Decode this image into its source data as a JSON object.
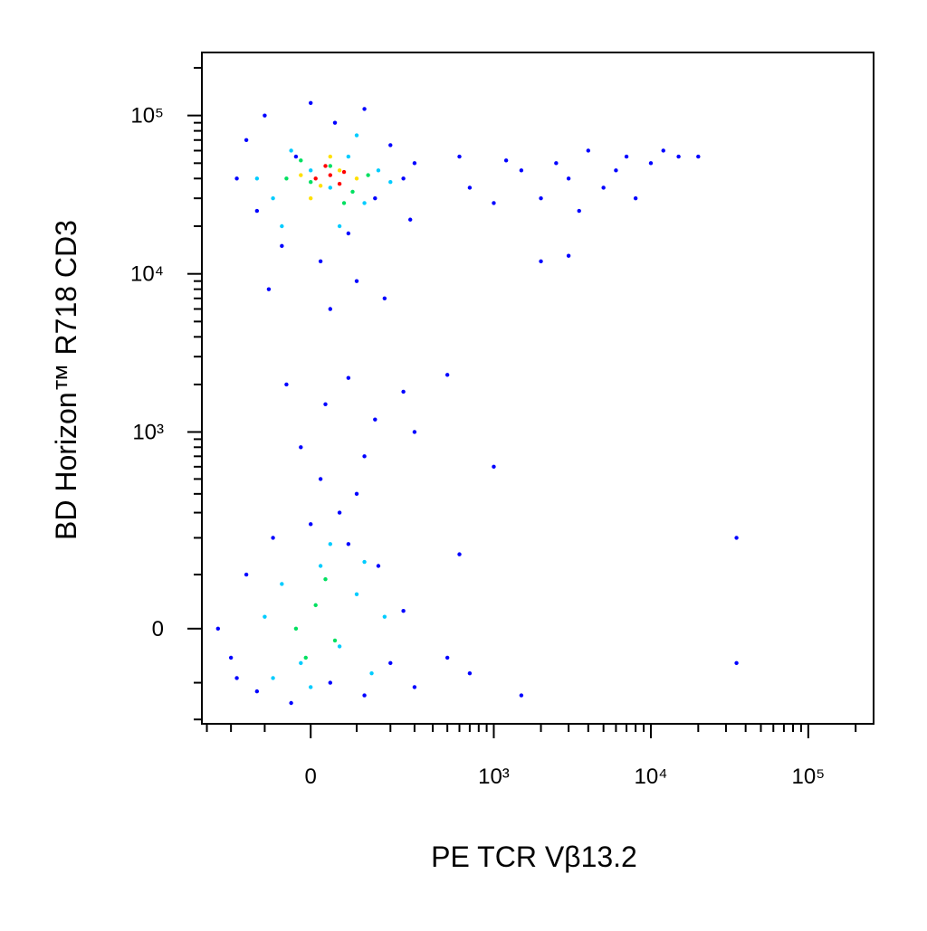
{
  "chart_data": {
    "type": "scatter",
    "xlabel": "PE  TCR Vβ13.2",
    "ylabel": "BD Horizon™ R718 CD3",
    "xscale": "biexponential",
    "yscale": "biexponential",
    "xlim": [
      -325,
      260000
    ],
    "ylim": [
      -215,
      250000
    ],
    "xticks": [
      0,
      {
        "value": 1000,
        "label": "10³"
      },
      {
        "value": 10000,
        "label": "10⁴"
      },
      {
        "value": 100000,
        "label": "10⁵"
      }
    ],
    "yticks": [
      0,
      {
        "value": 1000,
        "label": "10³"
      },
      {
        "value": 10000,
        "label": "10⁴"
      },
      {
        "value": 100000,
        "label": "10⁵"
      }
    ],
    "xminorticks": [
      -300,
      -200,
      -100,
      100,
      200,
      300,
      400,
      500,
      600,
      700,
      800,
      900,
      2000,
      3000,
      4000,
      5000,
      6000,
      7000,
      8000,
      9000,
      20000,
      30000,
      40000,
      50000,
      60000,
      70000,
      80000,
      90000,
      200000
    ],
    "yminorticks": [
      -200,
      -100,
      100,
      200,
      300,
      400,
      500,
      600,
      700,
      800,
      900,
      2000,
      3000,
      4000,
      5000,
      6000,
      7000,
      8000,
      9000,
      20000,
      30000,
      40000,
      50000,
      60000,
      70000,
      80000,
      90000,
      200000
    ],
    "series": [
      {
        "color": "#0000ff",
        "x": [
          -180,
          -150,
          -120,
          -100,
          -60,
          -30,
          0,
          20,
          50,
          80,
          120,
          150,
          200,
          250,
          280,
          300,
          -90,
          40,
          100,
          180,
          -50,
          30,
          80,
          150,
          250,
          -20,
          120,
          300,
          500,
          1000,
          700,
          1000,
          1500,
          2000,
          2500,
          3000,
          3500,
          4000,
          5000,
          6000,
          7000,
          8000,
          10000,
          12000,
          15000,
          20000,
          2000,
          3000,
          1200,
          600,
          -250,
          -200,
          -150,
          -120,
          -80,
          -40,
          0,
          40,
          80,
          120,
          160,
          200,
          250,
          300,
          -180,
          60,
          100,
          20,
          500,
          700,
          1500,
          35000,
          35000,
          600
        ],
        "y": [
          40000,
          70000,
          25000,
          100000,
          15000,
          55000,
          120000,
          12000,
          90000,
          18000,
          110000,
          30000,
          65000,
          40000,
          22000,
          50000,
          8000,
          6000,
          9000,
          7000,
          2000,
          1500,
          2200,
          1200,
          1800,
          800,
          700,
          1000,
          2300,
          600,
          35000,
          28000,
          45000,
          30000,
          50000,
          40000,
          25000,
          60000,
          35000,
          45000,
          55000,
          30000,
          50000,
          60000,
          55000,
          55000,
          12000,
          13000,
          52000,
          55000,
          0,
          -50,
          100,
          -120,
          200,
          -150,
          250,
          -100,
          180,
          -130,
          120,
          -60,
          30,
          -110,
          -90,
          300,
          400,
          500,
          -50,
          -80,
          -130,
          200,
          -60,
          150
        ]
      },
      {
        "color": "#00ccff",
        "x": [
          -120,
          -80,
          -40,
          0,
          40,
          80,
          120,
          160,
          200,
          -60,
          60,
          100,
          -100,
          -60,
          -20,
          20,
          60,
          100,
          140,
          -80,
          40,
          120,
          0,
          180
        ],
        "y": [
          40000,
          30000,
          60000,
          45000,
          35000,
          55000,
          28000,
          45000,
          38000,
          20000,
          20000,
          75000,
          20,
          80,
          -60,
          120,
          -30,
          60,
          -80,
          -90,
          180,
          130,
          -110,
          20
        ]
      },
      {
        "color": "#00e060",
        "x": [
          -50,
          0,
          40,
          90,
          130,
          -20,
          70,
          -30,
          10,
          50,
          -10,
          30
        ],
        "y": [
          40000,
          38000,
          48000,
          33000,
          42000,
          52000,
          28000,
          0,
          40,
          -20,
          -50,
          90
        ]
      },
      {
        "color": "#ffe000",
        "x": [
          -20,
          20,
          60,
          100,
          40,
          0
        ],
        "y": [
          42000,
          36000,
          45000,
          40000,
          55000,
          30000
        ]
      },
      {
        "color": "#ff0000",
        "x": [
          10,
          40,
          60,
          30,
          70
        ],
        "y": [
          40000,
          42000,
          37000,
          48000,
          44000
        ]
      }
    ]
  }
}
